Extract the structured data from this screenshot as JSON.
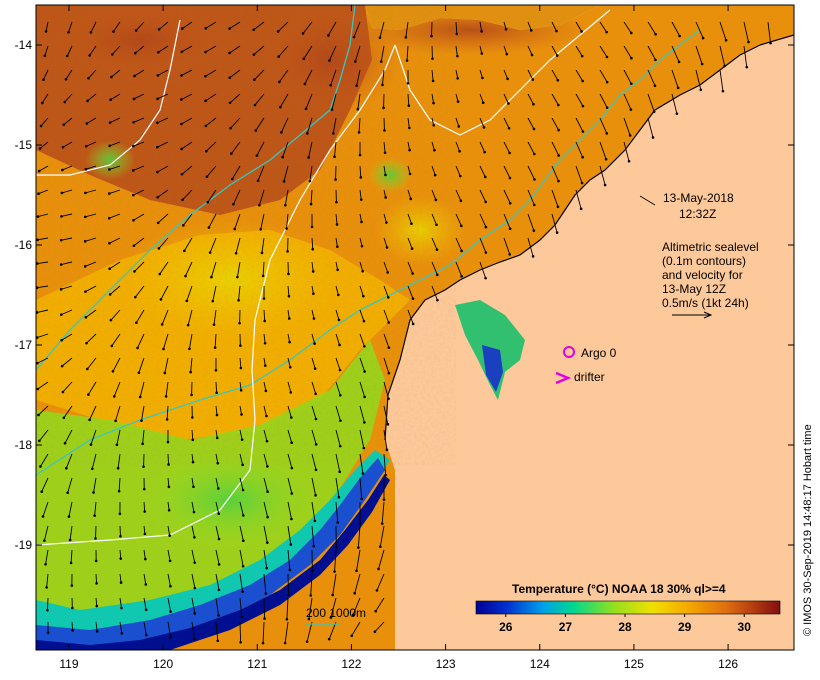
{
  "map": {
    "lon_ticks": [
      {
        "value": 119,
        "label": "119"
      },
      {
        "value": 120,
        "label": "120"
      },
      {
        "value": 121,
        "label": "121"
      },
      {
        "value": 122,
        "label": "122"
      },
      {
        "value": 123,
        "label": "123"
      },
      {
        "value": 124,
        "label": "124"
      },
      {
        "value": 125,
        "label": "125"
      },
      {
        "value": 126,
        "label": "126"
      }
    ],
    "lat_ticks": [
      {
        "value": -14,
        "label": "-14"
      },
      {
        "value": -15,
        "label": "-15"
      },
      {
        "value": -16,
        "label": "-16"
      },
      {
        "value": -17,
        "label": "-17"
      },
      {
        "value": -18,
        "label": "-18"
      },
      {
        "value": -19,
        "label": "-19"
      }
    ],
    "lon_range": [
      118.65,
      126.7
    ],
    "lat_range": [
      -20.05,
      -13.6
    ],
    "date_line1": "13-May-2018",
    "date_line2": "12:32Z",
    "altimetry_lines": [
      "Altimetric sealevel",
      "(0.1m contours)",
      "and velocity for",
      "13-May 12Z",
      "0.5m/s (1kt 24h)"
    ],
    "argo_label": "Argo 0",
    "drifter_label": "drifter",
    "bathy_label": "200  1000m",
    "credit": "© IMOS 30-Sep-2019 14:48:17 Hobart time"
  },
  "colorbar": {
    "title": "Temperature (°C) NOAA 18 30% ql>=4",
    "range": [
      25.5,
      30.6
    ],
    "ticks": [
      {
        "value": 26,
        "label": "26"
      },
      {
        "value": 27,
        "label": "27"
      },
      {
        "value": 28,
        "label": "28"
      },
      {
        "value": 29,
        "label": "29"
      },
      {
        "value": 30,
        "label": "30"
      }
    ]
  },
  "colors": {
    "land": "#fdc99a",
    "sst_warm": "#e0820e",
    "sst_hot": "#a83c14",
    "sst_mid": "#f4b400",
    "sst_cool": "#8bd21c",
    "sst_cold": "#1d4fd8",
    "contour_200": "#39c6c0",
    "contour_1000": "#ffffff",
    "argo": "#e000e0",
    "drifter": "#e000e0"
  }
}
